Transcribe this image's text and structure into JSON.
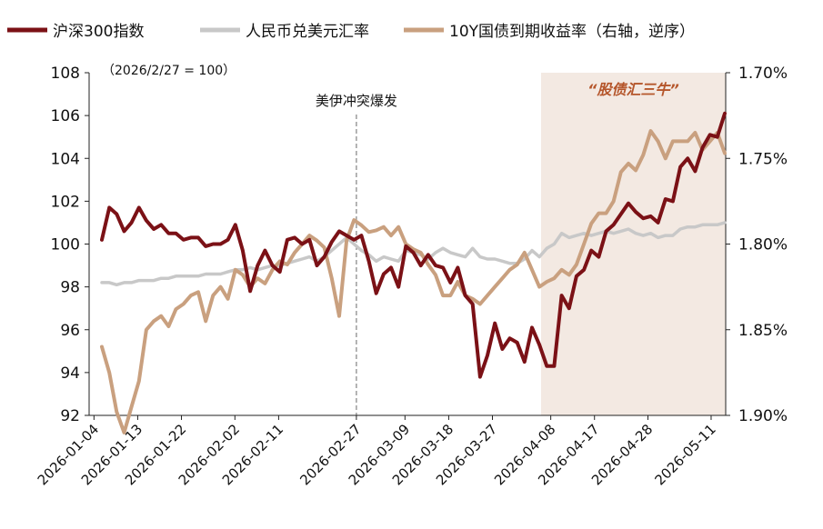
{
  "colors": {
    "csi300": "#7b1116",
    "usdcny": "#c8c8c8",
    "cgb10y": "#c9a07f",
    "shade": "#f3e9e2",
    "event_line": "#8c8c8c",
    "axis": "#222222",
    "shade_label": "#b5562b"
  },
  "chart_data": {
    "type": "line",
    "note": "（2026/2/27 = 100）",
    "event_label": "美伊冲突爆发",
    "event_date": "2026-02-27",
    "shade_label": "“股债汇三牛”",
    "shade_range": [
      "2026-04-06",
      "2026-05-14"
    ],
    "x_ticks": [
      "2026-01-04",
      "2026-01-13",
      "2026-01-22",
      "2026-02-02",
      "2026-02-11",
      "2026-02-27",
      "2026-03-09",
      "2026-03-18",
      "2026-03-27",
      "2026-04-08",
      "2026-04-17",
      "2026-04-28",
      "2026-05-11"
    ],
    "left_axis": {
      "ylim": [
        92,
        108
      ],
      "ticks": [
        "92",
        "94",
        "96",
        "98",
        "100",
        "102",
        "104",
        "106",
        "108"
      ]
    },
    "right_axis": {
      "ylim": [
        1.9,
        1.7
      ],
      "inverted": true,
      "ticks": [
        "1.70%",
        "1.75%",
        "1.80%",
        "1.85%",
        "1.90%"
      ]
    },
    "series": [
      {
        "name": "沪深300指数",
        "axis": "left",
        "color_key": "csi300",
        "values": [
          100.2,
          101.7,
          101.4,
          100.6,
          101.0,
          101.7,
          101.1,
          100.7,
          100.9,
          100.5,
          100.5,
          100.2,
          100.3,
          100.3,
          99.9,
          100.0,
          100.0,
          100.2,
          100.9,
          99.7,
          97.8,
          99.0,
          99.7,
          99.0,
          98.7,
          100.2,
          100.3,
          100.0,
          100.2,
          99.0,
          99.4,
          100.1,
          100.6,
          100.4,
          100.2,
          100.4,
          99.2,
          97.7,
          98.6,
          98.9,
          98.0,
          99.9,
          99.6,
          99.0,
          99.5,
          99.0,
          98.9,
          98.2,
          98.9,
          97.6,
          97.2,
          93.8,
          94.8,
          96.3,
          95.1,
          95.6,
          95.4,
          94.5,
          96.1,
          95.3,
          94.3,
          94.3,
          97.6,
          97.0,
          98.5,
          98.8,
          99.7,
          99.4,
          100.6,
          100.9,
          101.4,
          101.9,
          101.5,
          101.2,
          101.3,
          101.0,
          102.1,
          102.0,
          103.6,
          104.0,
          103.4,
          104.5,
          105.1,
          105.0,
          106.1
        ]
      },
      {
        "name": "人民币兑美元汇率",
        "axis": "left",
        "color_key": "usdcny",
        "values": [
          98.2,
          98.2,
          98.1,
          98.2,
          98.2,
          98.3,
          98.3,
          98.3,
          98.4,
          98.4,
          98.5,
          98.5,
          98.5,
          98.5,
          98.6,
          98.6,
          98.6,
          98.7,
          98.8,
          98.8,
          98.9,
          98.8,
          98.9,
          99.0,
          99.0,
          99.1,
          99.2,
          99.3,
          99.4,
          99.2,
          99.4,
          99.7,
          100.0,
          100.3,
          100.0,
          99.7,
          99.5,
          99.2,
          99.4,
          99.3,
          99.2,
          99.7,
          99.6,
          99.5,
          99.3,
          99.6,
          99.8,
          99.6,
          99.5,
          99.4,
          99.8,
          99.4,
          99.3,
          99.3,
          99.2,
          99.1,
          99.1,
          99.3,
          99.7,
          99.4,
          99.8,
          100.0,
          100.5,
          100.3,
          100.4,
          100.5,
          100.4,
          100.5,
          100.6,
          100.5,
          100.6,
          100.7,
          100.5,
          100.4,
          100.5,
          100.3,
          100.4,
          100.4,
          100.7,
          100.8,
          100.8,
          100.9,
          100.9,
          100.9,
          101.0
        ]
      },
      {
        "name": "10Y国债到期收益率（右轴，逆序）",
        "axis": "right",
        "color_key": "cgb10y",
        "values": [
          1.86,
          1.875,
          1.898,
          1.91,
          1.895,
          1.88,
          1.85,
          1.845,
          1.842,
          1.848,
          1.838,
          1.835,
          1.83,
          1.828,
          1.845,
          1.83,
          1.825,
          1.832,
          1.815,
          1.818,
          1.825,
          1.82,
          1.823,
          1.815,
          1.81,
          1.812,
          1.805,
          1.8,
          1.795,
          1.798,
          1.802,
          1.82,
          1.842,
          1.798,
          1.786,
          1.789,
          1.793,
          1.792,
          1.79,
          1.795,
          1.79,
          1.8,
          1.803,
          1.805,
          1.812,
          1.818,
          1.83,
          1.83,
          1.822,
          1.83,
          1.832,
          1.835,
          1.83,
          1.825,
          1.82,
          1.815,
          1.812,
          1.805,
          1.815,
          1.825,
          1.822,
          1.82,
          1.815,
          1.818,
          1.812,
          1.8,
          1.788,
          1.782,
          1.782,
          1.775,
          1.758,
          1.753,
          1.757,
          1.748,
          1.734,
          1.74,
          1.75,
          1.74,
          1.74,
          1.74,
          1.735,
          1.745,
          1.74,
          1.735,
          1.747
        ]
      }
    ]
  }
}
